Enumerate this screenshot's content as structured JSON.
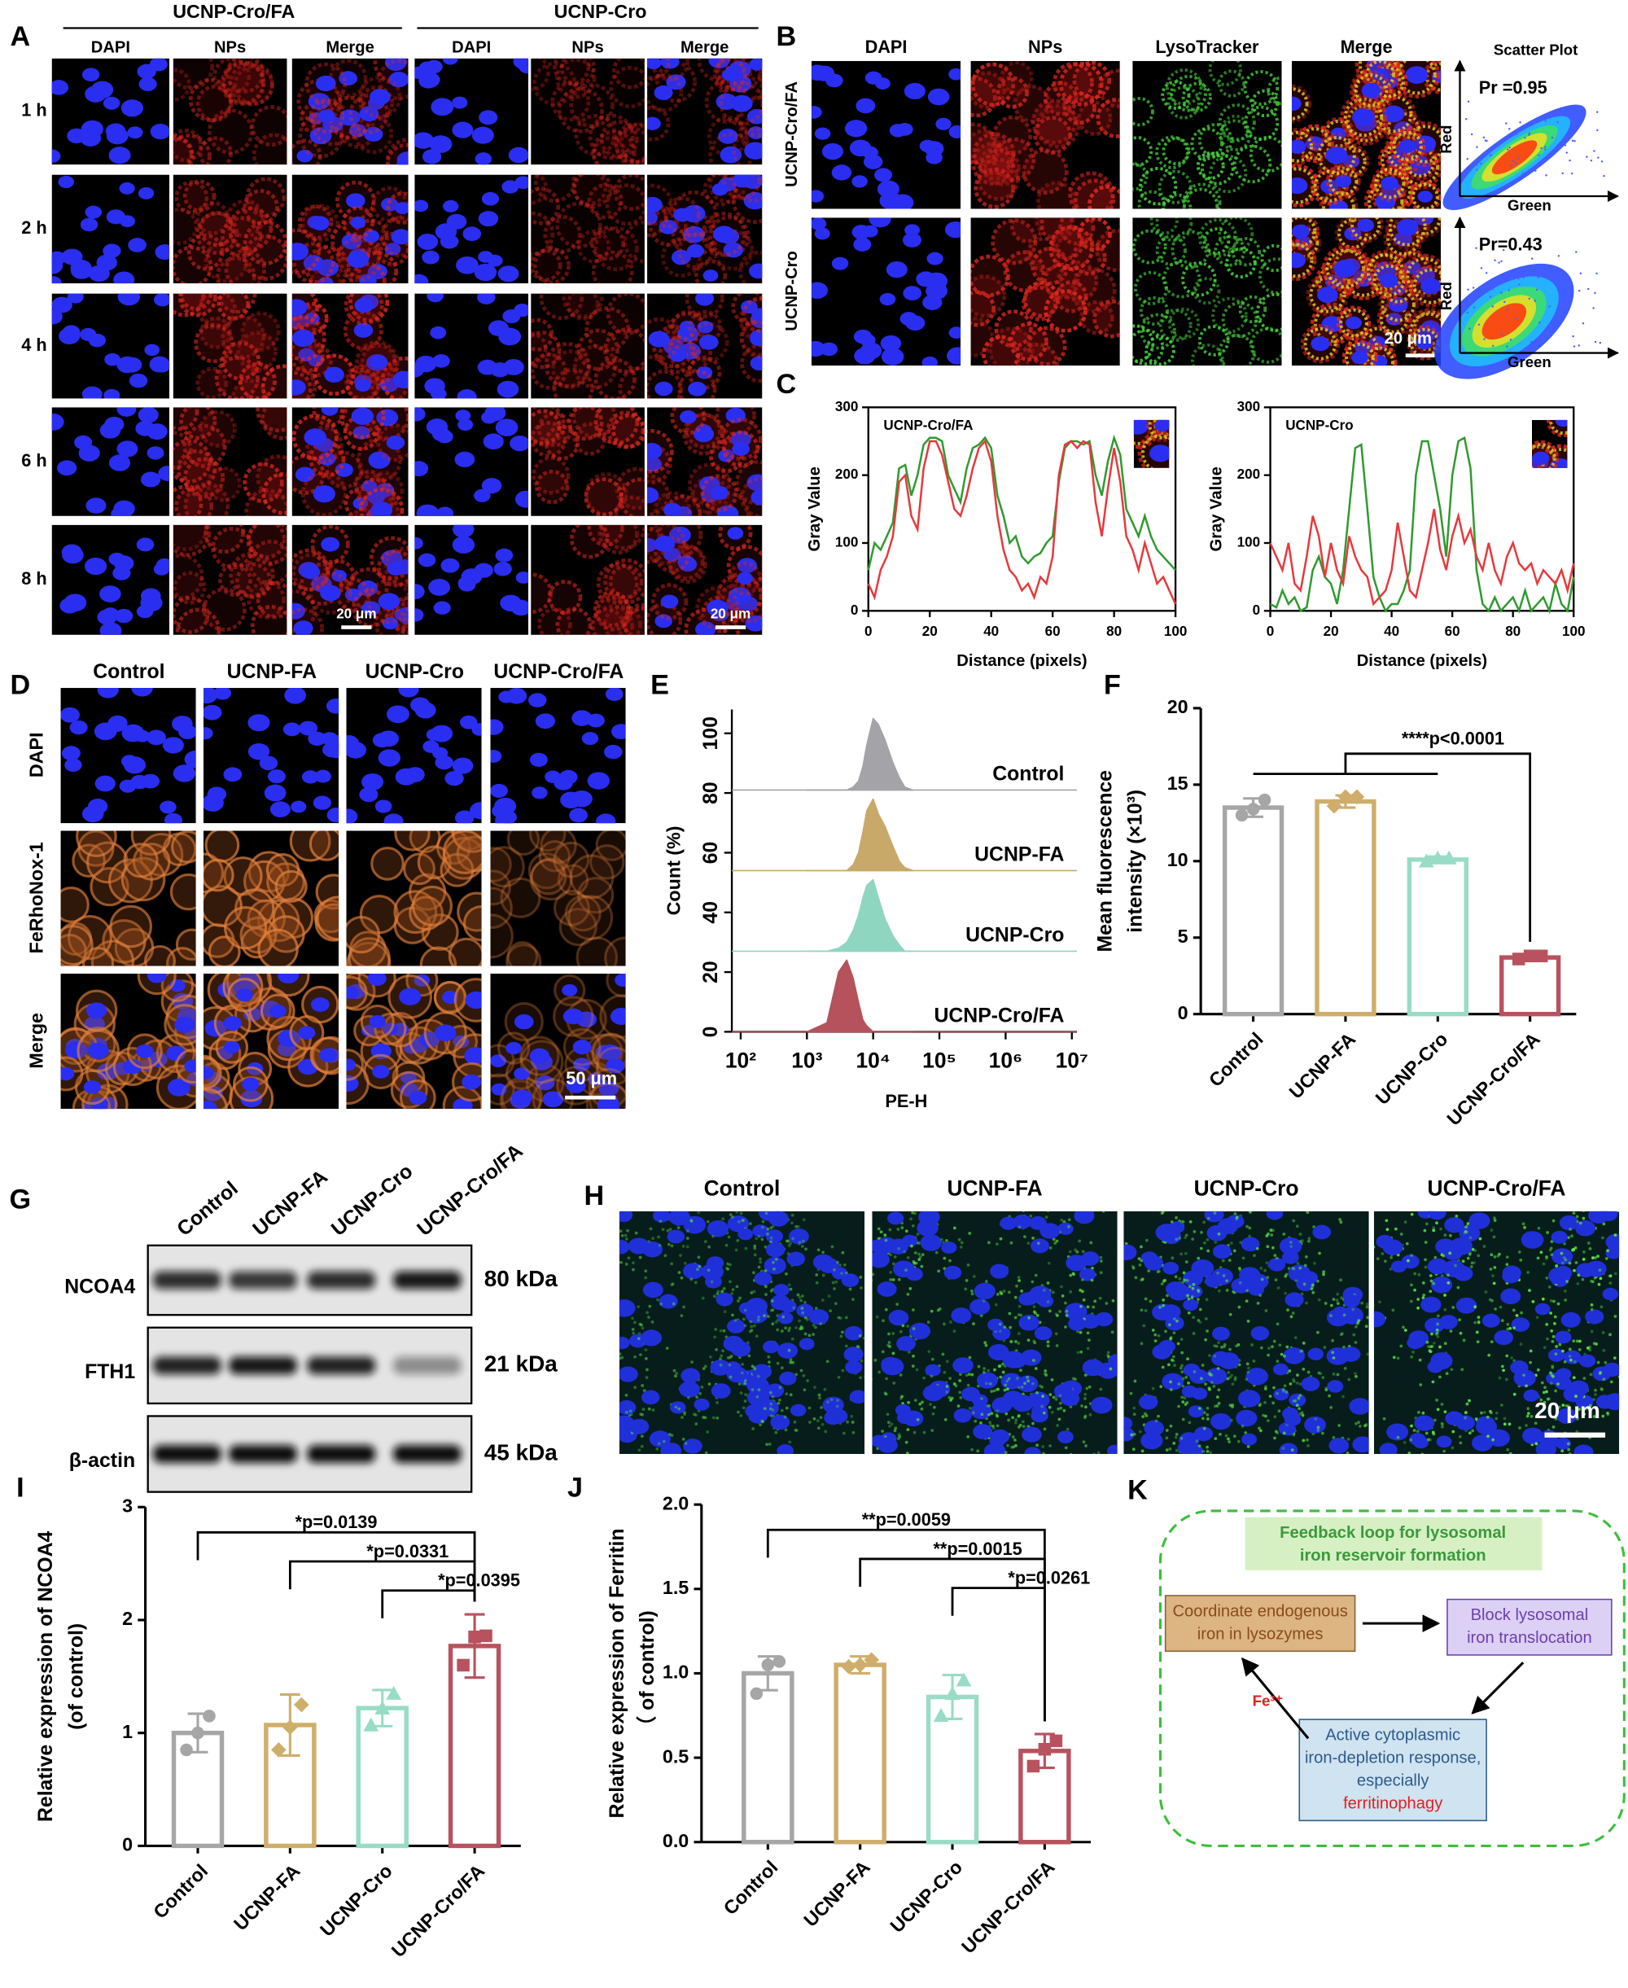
{
  "panel_labels": [
    "A",
    "B",
    "C",
    "D",
    "E",
    "F",
    "G",
    "H",
    "I",
    "J",
    "K"
  ],
  "panel_A": {
    "groups": [
      "UCNP-Cro/FA",
      "UCNP-Cro"
    ],
    "columns": [
      "DAPI",
      "NPs",
      "Merge",
      "DAPI",
      "NPs",
      "Merge"
    ],
    "rows": [
      "1 h",
      "2 h",
      "4 h",
      "6 h",
      "8 h"
    ],
    "scale_bars": [
      "20 μm",
      "20 μm"
    ]
  },
  "panel_B": {
    "columns": [
      "DAPI",
      "NPs",
      "LysoTracker",
      "Merge",
      "Scatter Plot"
    ],
    "rows": [
      "UCNP-Cro/FA",
      "UCNP-Cro"
    ],
    "scale_bar": "20 μm",
    "scatter": {
      "x_label": "Green",
      "y_label": "Red",
      "pearson": [
        "Pr =0.95",
        "Pr=0.43"
      ]
    }
  },
  "panel_D": {
    "columns": [
      "Control",
      "UCNP-FA",
      "UCNP-Cro",
      "UCNP-Cro/FA"
    ],
    "rows": [
      "DAPI",
      "FeRhoNox-1",
      "Merge"
    ],
    "scale_bar": "50 μm"
  },
  "panel_G": {
    "columns": [
      "Control",
      "UCNP-FA",
      "UCNP-Cro",
      "UCNP-Cro/FA"
    ],
    "rows": [
      {
        "protein": "NCOA4",
        "size": "80 kDa"
      },
      {
        "protein": "FTH1",
        "size": "21 kDa"
      },
      {
        "protein": "β-actin",
        "size": "45 kDa"
      }
    ]
  },
  "panel_H": {
    "columns": [
      "Control",
      "UCNP-FA",
      "UCNP-Cro",
      "UCNP-Cro/FA"
    ],
    "scale_bar": "20 μm"
  },
  "panel_K": {
    "title": [
      "Feedback loop for lysosomal",
      "iron reservoir formation"
    ],
    "nodes": [
      {
        "label": [
          "Coordinate endogenous",
          "iron in lysozymes"
        ]
      },
      {
        "label": [
          "Block lysosomal",
          "iron translocation"
        ]
      },
      {
        "label": [
          "Active cytoplasmic",
          "iron-depletion response,",
          "especially"
        ],
        "highlight": "ferritinophagy"
      }
    ],
    "edge_label": "Fe³⁺"
  },
  "chart_data": [
    {
      "type": "line",
      "title": "UCNP-Cro/FA",
      "x_label": "Distance (pixels)",
      "y_label": "Gray Value",
      "x": [
        0,
        2,
        4,
        6,
        8,
        10,
        12,
        14,
        16,
        18,
        20,
        22,
        24,
        26,
        28,
        30,
        32,
        34,
        36,
        38,
        40,
        42,
        44,
        46,
        48,
        50,
        52,
        54,
        56,
        58,
        60,
        62,
        64,
        66,
        68,
        70,
        72,
        74,
        76,
        78,
        80,
        82,
        84,
        86,
        88,
        90,
        92,
        94,
        96,
        98,
        100
      ],
      "xlim": [
        0,
        100
      ],
      "xticks": [
        0,
        20,
        40,
        60,
        80,
        100
      ],
      "ylim": [
        0,
        300
      ],
      "yticks": [
        0,
        100,
        200,
        300
      ],
      "series": [
        {
          "name": "Green",
          "color": "#2e9a2e",
          "values": [
            60,
            100,
            90,
            110,
            130,
            210,
            215,
            170,
            200,
            245,
            255,
            255,
            250,
            200,
            180,
            160,
            210,
            240,
            245,
            255,
            240,
            170,
            140,
            100,
            110,
            80,
            70,
            80,
            85,
            100,
            110,
            190,
            240,
            250,
            250,
            245,
            250,
            200,
            170,
            220,
            255,
            230,
            150,
            130,
            110,
            140,
            110,
            90,
            80,
            70,
            60
          ]
        },
        {
          "name": "Red",
          "color": "#e8383c",
          "values": [
            40,
            20,
            60,
            80,
            110,
            190,
            200,
            140,
            120,
            210,
            250,
            250,
            230,
            190,
            150,
            140,
            170,
            210,
            240,
            250,
            220,
            140,
            90,
            60,
            50,
            30,
            40,
            20,
            50,
            40,
            80,
            200,
            245,
            250,
            240,
            250,
            245,
            160,
            110,
            180,
            240,
            190,
            110,
            90,
            60,
            100,
            70,
            40,
            50,
            30,
            10
          ]
        }
      ]
    },
    {
      "type": "line",
      "title": "UCNP-Cro",
      "x_label": "Distance (pixels)",
      "y_label": "Gray Value",
      "x": [
        0,
        2,
        4,
        6,
        8,
        10,
        12,
        14,
        16,
        18,
        20,
        22,
        24,
        26,
        28,
        30,
        32,
        34,
        36,
        38,
        40,
        42,
        44,
        46,
        48,
        50,
        52,
        54,
        56,
        58,
        60,
        62,
        64,
        66,
        68,
        70,
        72,
        74,
        76,
        78,
        80,
        82,
        84,
        86,
        88,
        90,
        92,
        94,
        96,
        98,
        100
      ],
      "xlim": [
        0,
        100
      ],
      "xticks": [
        0,
        20,
        40,
        60,
        80,
        100
      ],
      "ylim": [
        0,
        300
      ],
      "yticks": [
        0,
        100,
        200,
        300
      ],
      "series": [
        {
          "name": "Green",
          "color": "#2e9a2e",
          "values": [
            10,
            5,
            30,
            10,
            20,
            0,
            5,
            60,
            80,
            50,
            40,
            10,
            60,
            150,
            240,
            245,
            150,
            50,
            20,
            0,
            10,
            10,
            30,
            60,
            200,
            250,
            250,
            200,
            150,
            80,
            200,
            250,
            255,
            210,
            60,
            10,
            0,
            20,
            0,
            10,
            20,
            0,
            30,
            0,
            10,
            20,
            0,
            40,
            10,
            0,
            50
          ]
        },
        {
          "name": "Red",
          "color": "#e8383c",
          "values": [
            100,
            80,
            60,
            100,
            40,
            30,
            80,
            140,
            110,
            50,
            100,
            60,
            40,
            110,
            80,
            60,
            50,
            10,
            20,
            30,
            60,
            130,
            80,
            30,
            20,
            60,
            100,
            150,
            90,
            60,
            110,
            140,
            100,
            120,
            80,
            60,
            100,
            60,
            40,
            80,
            100,
            70,
            60,
            70,
            40,
            60,
            50,
            40,
            60,
            30,
            70
          ]
        }
      ]
    },
    {
      "type": "ridgeline",
      "x_label": "PE-H",
      "y_label": "Count  (%)",
      "log_x": true,
      "xlim": [
        100,
        10000000
      ],
      "xticks": [
        {
          "value": 100,
          "label": "10²"
        },
        {
          "value": 1000,
          "label": "10³"
        },
        {
          "value": 10000,
          "label": "10⁴"
        },
        {
          "value": 100000,
          "label": "10⁵"
        },
        {
          "value": 1000000,
          "label": "10⁶"
        },
        {
          "value": 10000000,
          "label": "10⁷"
        }
      ],
      "ylim": [
        0,
        108
      ],
      "yticks": [
        0,
        20,
        40,
        60,
        80,
        100
      ],
      "x": [
        1000,
        2000,
        3000,
        4000,
        5000,
        6000,
        7000,
        8000,
        10000,
        12000,
        15000,
        20000,
        25000,
        30000,
        40000
      ],
      "series": [
        {
          "name": "Control",
          "color": "#a3a3a8",
          "values": [
            0,
            0,
            0,
            0,
            1,
            3,
            8,
            15,
            24,
            22,
            17,
            9,
            4,
            1,
            0
          ]
        },
        {
          "name": "UCNP-FA",
          "color": "#c8a96a",
          "values": [
            0,
            0,
            0,
            0,
            2,
            6,
            13,
            20,
            24,
            19,
            15,
            8,
            3,
            1,
            0
          ]
        },
        {
          "name": "UCNP-Cro",
          "color": "#8fd6c0",
          "values": [
            0,
            0,
            1,
            3,
            7,
            12,
            18,
            22,
            24,
            18,
            11,
            5,
            2,
            0,
            0
          ]
        },
        {
          "name": "UCNP-Cro/FA",
          "color": "#b5525c",
          "values": [
            0,
            3,
            20,
            24,
            18,
            10,
            4,
            2,
            0,
            0,
            0,
            0,
            0,
            0,
            0
          ]
        }
      ]
    },
    {
      "type": "bar",
      "y_label": [
        "Mean fluorescence",
        "intensity (×10³)"
      ],
      "categories": [
        "Control",
        "UCNP-FA",
        "UCNP-Cro",
        "UCNP-Cro/FA"
      ],
      "values": [
        13.5,
        13.9,
        10.1,
        3.7
      ],
      "errors": [
        0.6,
        0.4,
        0.2,
        0.2
      ],
      "points": [
        [
          13.0,
          13.4,
          14.0
        ],
        [
          13.6,
          14.2,
          14.2
        ],
        [
          10.0,
          10.2,
          10.2
        ],
        [
          3.6,
          3.8,
          3.8
        ]
      ],
      "colors": [
        "#a6a6a6",
        "#cfae6b",
        "#98dcc6",
        "#b8525e"
      ],
      "ylim": [
        0,
        20
      ],
      "yticks": [
        0,
        5,
        10,
        15,
        20
      ],
      "annotations": [
        "****p<0.0001"
      ]
    },
    {
      "type": "bar",
      "y_label": [
        "Relative expression of NCOA4",
        "(of control)"
      ],
      "categories": [
        "Control",
        "UCNP-FA",
        "UCNP-Cro",
        "UCNP-Cro/FA"
      ],
      "values": [
        1.0,
        1.07,
        1.22,
        1.77
      ],
      "errors": [
        0.17,
        0.27,
        0.16,
        0.28
      ],
      "points": [
        [
          0.85,
          1.0,
          1.15
        ],
        [
          0.85,
          1.05,
          1.25
        ],
        [
          1.07,
          1.22,
          1.35
        ],
        [
          1.6,
          1.85,
          1.86
        ]
      ],
      "colors": [
        "#a6a6a6",
        "#cfae6b",
        "#98dcc6",
        "#b8525e"
      ],
      "ylim": [
        0,
        3
      ],
      "yticks": [
        0,
        1,
        2,
        3
      ],
      "annotations": [
        "*p=0.0139",
        "*p=0.0331",
        "*p=0.0395"
      ]
    },
    {
      "type": "bar",
      "y_label": [
        "Relative expression of Ferritin",
        "（ of control)"
      ],
      "categories": [
        "Control",
        "UCNP-FA",
        "UCNP-Cro",
        "UCNP-Cro/FA"
      ],
      "values": [
        1.0,
        1.05,
        0.86,
        0.54
      ],
      "errors": [
        0.1,
        0.05,
        0.13,
        0.1
      ],
      "points": [
        [
          0.88,
          1.05,
          1.07
        ],
        [
          1.04,
          1.05,
          1.08
        ],
        [
          0.75,
          0.88,
          0.96
        ],
        [
          0.45,
          0.55,
          0.6
        ]
      ],
      "colors": [
        "#a6a6a6",
        "#cfae6b",
        "#98dcc6",
        "#b8525e"
      ],
      "ylim": [
        0,
        2
      ],
      "yticks": [
        {
          "value": 0,
          "label": "0.0"
        },
        0.5,
        {
          "value": 1,
          "label": "1.0"
        },
        1.5,
        {
          "value": 2,
          "label": "2.0"
        }
      ],
      "annotations": [
        "**p=0.0059",
        "**p=0.0015",
        "*p=0.0261"
      ]
    }
  ]
}
